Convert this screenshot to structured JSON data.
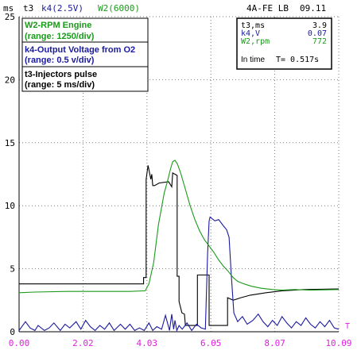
{
  "header": {
    "unit": "ms",
    "channels": [
      {
        "label": "t3",
        "color": "#000000"
      },
      {
        "label": "k4(2.5V)",
        "color": "#1a1aa0"
      },
      {
        "label": "W2(6000)",
        "color": "#1a9a1a"
      }
    ],
    "engine": "4A-FE LB",
    "date": "09.11"
  },
  "legend": [
    {
      "name": "W2-RPM Engine",
      "range": "(range: 1250/div)",
      "color": "#1a9a1a"
    },
    {
      "name": "k4-Output Voltage from O2",
      "range": "(range: 0.5 v/div)",
      "color": "#1a1aa0"
    },
    {
      "name": "t3-Injectors pulse",
      "range": "(range: 5 ms/div)",
      "color": "#000000"
    }
  ],
  "readout": {
    "rows": [
      {
        "label": "t3,ms",
        "value": "3.9",
        "color": "#000000"
      },
      {
        "label": "k4,V",
        "value": "0.07",
        "color": "#1a1aa0"
      },
      {
        "label": "W2,rpm",
        "value": "772",
        "color": "#1a9a1a"
      }
    ],
    "intime_label": "In time",
    "intime_value": "T= 0.517s"
  },
  "colors": {
    "grid": "#7a7a7a",
    "tick_label": "#000000",
    "x_tick_label": "#e020e0",
    "rpm": "#1a9a1a",
    "o2": "#1a1aa0",
    "injector": "#000000",
    "axis": "#000000"
  },
  "chart_data": {
    "type": "line",
    "x_unit_label": "T",
    "ylim": [
      0,
      25
    ],
    "xlim": [
      0,
      10.09
    ],
    "y_ticks": [
      0,
      5,
      10,
      15,
      20,
      25
    ],
    "x_ticks": [
      "0.00",
      "2.02",
      "4.03",
      "6.05",
      "8.07",
      "10.09"
    ],
    "grid": true,
    "series": [
      {
        "name": "t3",
        "color": "#000000",
        "x": [
          0,
          3.93,
          3.93,
          4.01,
          4.01,
          4.07,
          4.16,
          4.19,
          4.22,
          4.28,
          4.42,
          4.72,
          4.82,
          4.85,
          4.99,
          4.99,
          5.05,
          5.05,
          5.14,
          5.22,
          5.25,
          5.63,
          5.63,
          6.0,
          6.0,
          6.1,
          6.13,
          6.58,
          6.58,
          6.76,
          7.0,
          7.3,
          7.8,
          8.3,
          9.0,
          10.09
        ],
        "y": [
          3.8,
          3.8,
          4.3,
          4.3,
          12.1,
          13.2,
          12.1,
          12.5,
          11.6,
          11.6,
          11.8,
          11.9,
          11.5,
          12.6,
          12.4,
          4.4,
          4.4,
          2.4,
          1.5,
          1.4,
          0.5,
          0.5,
          4.5,
          4.5,
          0.5,
          0.5,
          0.5,
          0.5,
          2.7,
          2.5,
          2.7,
          2.9,
          3.1,
          3.25,
          3.35,
          3.4
        ]
      },
      {
        "name": "k4",
        "color": "#1a1aa0",
        "x": [
          0,
          0.2,
          0.35,
          0.5,
          0.6,
          0.8,
          0.95,
          1.1,
          1.3,
          1.45,
          1.6,
          1.8,
          1.95,
          2.1,
          2.25,
          2.4,
          2.55,
          2.7,
          2.85,
          3.0,
          3.2,
          3.35,
          3.5,
          3.65,
          3.8,
          3.95,
          4.1,
          4.22,
          4.35,
          4.5,
          4.62,
          4.75,
          4.82,
          4.88,
          4.92,
          4.98,
          5.05,
          5.15,
          5.3,
          5.45,
          5.6,
          5.75,
          5.88,
          5.95,
          6.0,
          6.03,
          6.18,
          6.3,
          6.45,
          6.55,
          6.63,
          6.7,
          6.78,
          6.9,
          7.05,
          7.2,
          7.38,
          7.55,
          7.7,
          7.85,
          8.0,
          8.15,
          8.3,
          8.45,
          8.6,
          8.75,
          8.9,
          9.05,
          9.2,
          9.35,
          9.5,
          9.65,
          9.8,
          9.95,
          10.09
        ],
        "y": [
          0.1,
          0.8,
          0.3,
          0.1,
          0.5,
          0.1,
          0.3,
          0.7,
          0.1,
          0.6,
          0.3,
          0.8,
          0.2,
          0.9,
          0.4,
          0.1,
          0.5,
          0.2,
          0.7,
          0.1,
          0.6,
          0.2,
          0.6,
          0.1,
          0.3,
          0.1,
          0.7,
          0.1,
          0.4,
          0.2,
          1.3,
          0.1,
          1.4,
          0.2,
          0.9,
          0.1,
          0.5,
          0.2,
          0.7,
          0.1,
          0.6,
          0.3,
          0.2,
          6.2,
          8.8,
          9.1,
          8.8,
          8.9,
          8.4,
          8.1,
          7.5,
          4.5,
          1.5,
          0.8,
          1.2,
          0.6,
          0.9,
          1.4,
          0.8,
          0.4,
          0.9,
          0.5,
          1.2,
          0.7,
          0.3,
          0.8,
          0.5,
          1.1,
          0.6,
          0.3,
          0.8,
          0.4,
          0.9,
          0.3,
          0.2
        ]
      },
      {
        "name": "W2",
        "color": "#1a9a1a",
        "x": [
          0,
          0.5,
          1.5,
          2.5,
          3.5,
          3.98,
          4.1,
          4.25,
          4.4,
          4.58,
          4.7,
          4.78,
          4.85,
          4.92,
          5.0,
          5.1,
          5.25,
          5.4,
          5.55,
          5.7,
          5.85,
          6.0,
          6.15,
          6.3,
          6.45,
          6.6,
          6.76,
          6.9,
          7.1,
          7.35,
          7.65,
          8.0,
          8.3,
          8.7,
          9.2,
          10.09
        ],
        "y": [
          3.1,
          3.15,
          3.2,
          3.2,
          3.2,
          3.25,
          3.8,
          5.5,
          8.5,
          11.0,
          12.1,
          12.9,
          13.5,
          13.6,
          13.3,
          12.6,
          11.3,
          10.0,
          8.9,
          8.0,
          7.3,
          6.8,
          6.3,
          5.7,
          5.2,
          4.8,
          4.3,
          4.0,
          3.8,
          3.6,
          3.45,
          3.35,
          3.3,
          3.35,
          3.3,
          3.35
        ]
      }
    ]
  }
}
